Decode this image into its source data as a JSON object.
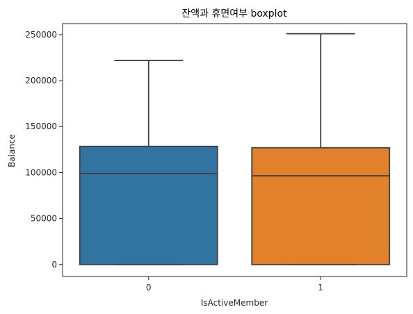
{
  "chart_data": {
    "type": "boxplot",
    "title": "잔액과 휴면여부 boxplot",
    "xlabel": "IsActiveMember",
    "ylabel": "Balance",
    "categories": [
      "0",
      "1"
    ],
    "colors": [
      "#3274a1",
      "#e1812c"
    ],
    "edge_color": "#3f3f3f",
    "ylim": [
      -13000,
      262000
    ],
    "yticks": [
      0,
      50000,
      100000,
      150000,
      200000,
      250000
    ],
    "ytick_labels": [
      "0",
      "50000",
      "100000",
      "150000",
      "200000",
      "250000"
    ],
    "boxes": [
      {
        "category": "0",
        "whisker_low": 0,
        "q1": 0,
        "median": 99000,
        "q3": 128500,
        "whisker_high": 222000
      },
      {
        "category": "1",
        "whisker_low": 0,
        "q1": 0,
        "median": 96500,
        "q3": 127000,
        "whisker_high": 251000
      }
    ],
    "grid": false,
    "legend": "none"
  }
}
